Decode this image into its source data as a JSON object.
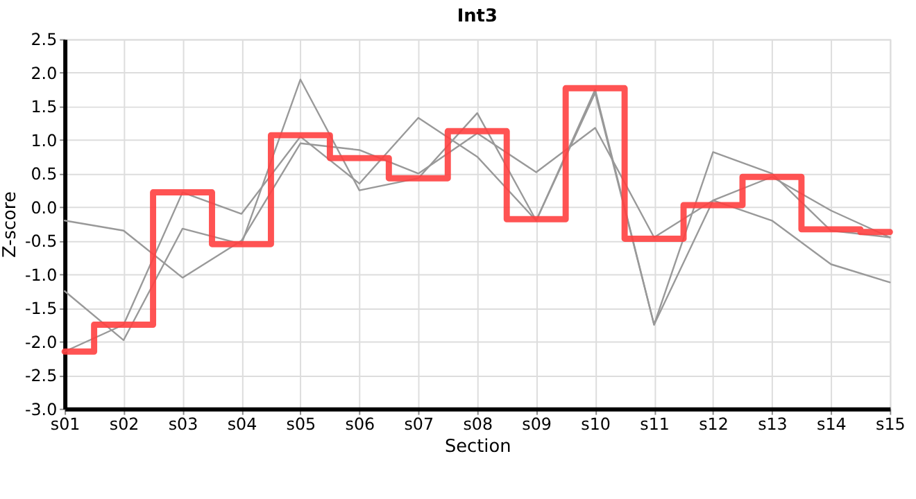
{
  "chart_data": {
    "type": "line",
    "title": "Int3",
    "xlabel": "Section",
    "ylabel": "Z-score",
    "categories": [
      "s01",
      "s02",
      "s03",
      "s04",
      "s05",
      "s06",
      "s07",
      "s08",
      "s09",
      "s10",
      "s11",
      "s12",
      "s13",
      "s14",
      "s15"
    ],
    "series": [
      {
        "color": "#999999",
        "values": [
          -0.2,
          -0.35,
          -1.05,
          -0.5,
          0.95,
          0.85,
          0.5,
          1.1,
          0.52,
          1.18,
          -0.45,
          0.1,
          0.45,
          -0.05,
          -0.45
        ]
      },
      {
        "color": "#999999",
        "values": [
          -1.25,
          -1.98,
          -0.32,
          -0.55,
          1.9,
          0.25,
          0.43,
          1.4,
          -0.2,
          1.7,
          -1.75,
          0.82,
          0.5,
          -0.35,
          -0.45
        ]
      },
      {
        "color": "#999999",
        "values": [
          -2.15,
          -1.75,
          0.22,
          -0.1,
          1.05,
          0.35,
          1.33,
          0.75,
          -0.2,
          1.75,
          -1.75,
          0.1,
          -0.2,
          -0.85,
          -1.12
        ]
      },
      {
        "type": "step",
        "color": "#ff4040",
        "values": [
          -2.15,
          -1.75,
          0.22,
          -0.55,
          1.07,
          0.73,
          0.43,
          1.13,
          -0.18,
          1.77,
          -0.47,
          0.03,
          0.45,
          -0.33,
          -0.37
        ]
      }
    ],
    "ylim": [
      -3,
      2.5
    ],
    "yticks": [
      {
        "value": -3,
        "label": "-3.0"
      },
      {
        "value": -2.5,
        "label": "-2.5"
      },
      {
        "value": -2,
        "label": "-2.0"
      },
      {
        "value": -1.5,
        "label": "-1.5"
      },
      {
        "value": -1,
        "label": "-1.0"
      },
      {
        "value": -0.5,
        "label": "-0.5"
      },
      {
        "value": 0,
        "label": "0.0"
      },
      {
        "value": 0.5,
        "label": "0.5"
      },
      {
        "value": 1,
        "label": "1.0"
      },
      {
        "value": 1.5,
        "label": "1.5"
      },
      {
        "value": 2,
        "label": "2.0"
      },
      {
        "value": 2.5,
        "label": "2.5"
      }
    ],
    "grid": true,
    "legend": false
  }
}
